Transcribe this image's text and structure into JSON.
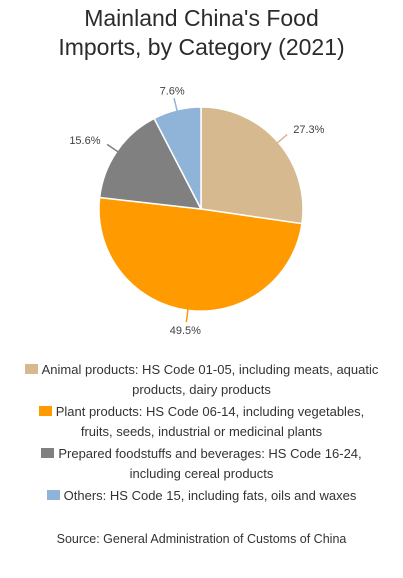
{
  "chart_data": {
    "type": "pie",
    "title_lines": [
      "Mainland China's Food",
      "Imports, by Category (2021)"
    ],
    "slices": [
      {
        "label": "27.3%",
        "value": 27.3,
        "color": "#D6B98F",
        "legend_lines": [
          "Animal products: HS Code 01-05, including meats, aquatic",
          "products, dairy products"
        ]
      },
      {
        "label": "49.5%",
        "value": 49.5,
        "color": "#FF9A00",
        "legend_lines": [
          "Plant products: HS Code 06-14, including vegetables,",
          "fruits, seeds, industrial or medicinal plants"
        ]
      },
      {
        "label": "15.6%",
        "value": 15.6,
        "color": "#808080",
        "legend_lines": [
          "Prepared foodstuffs and beverages: HS Code 16-24,",
          "including cereal products"
        ]
      },
      {
        "label": "7.6%",
        "value": 7.6,
        "color": "#8FB4D8",
        "legend_lines": [
          "Others: HS Code 15, including fats, oils and waxes"
        ]
      }
    ],
    "legend_position": "bottom",
    "source": "Source: General Administration of Customs of China"
  }
}
